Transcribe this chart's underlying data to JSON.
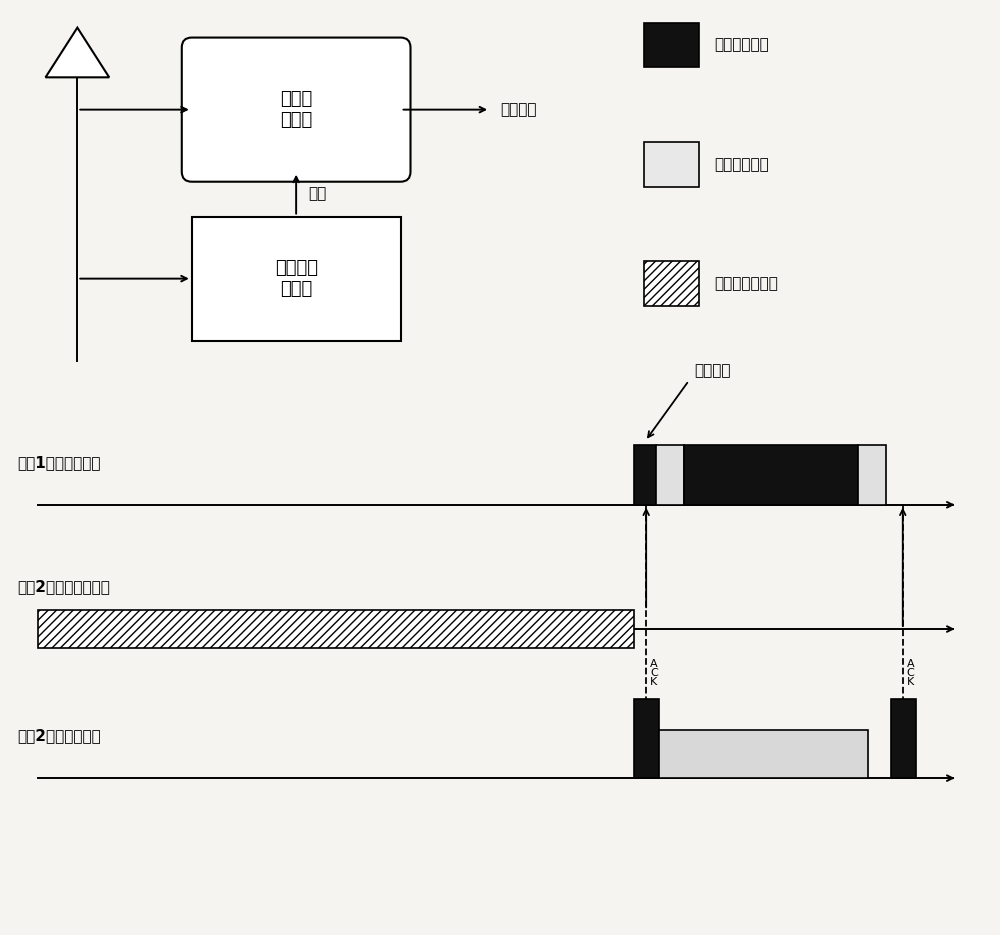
{
  "bg_color": "#f5f4f0",
  "block1_label": "主无线\n接收机",
  "block2_label": "唤醒无线\n接收机",
  "output_label": "输出数据",
  "activate_label": "激活",
  "legend1_label": "发送工作状态",
  "legend2_label": "接收工作状态",
  "legend3_label": "唤醒接收机打开",
  "node1_label": "节点1（发送数据）",
  "node2a_label": "节点2（唤醒接收机）",
  "node2b_label": "节点2（接收数据）",
  "fasong_req_label": "发送请求",
  "ack_label": "ACK",
  "figw": 10.0,
  "figh": 9.35,
  "dpi": 100
}
